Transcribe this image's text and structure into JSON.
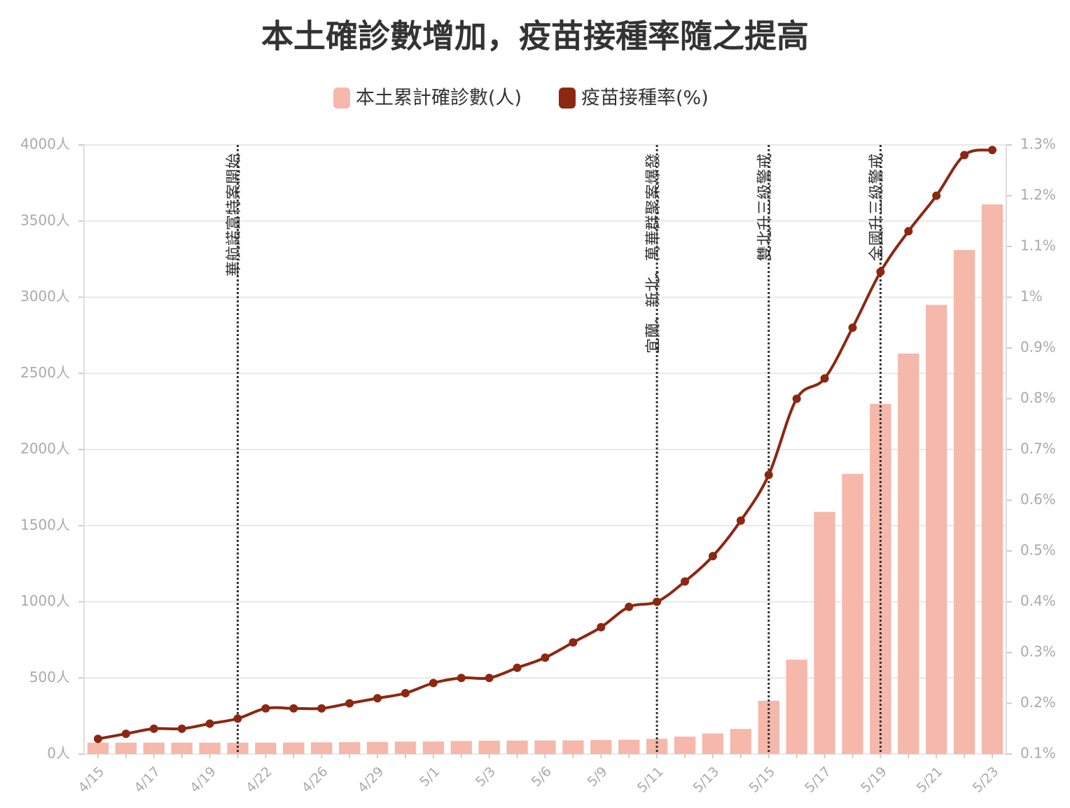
{
  "chart_data": {
    "type": "bar-line",
    "title": "本土確診數增加，疫苗接種率隨之提高",
    "categories": [
      "4/15",
      null,
      "4/17",
      null,
      "4/19",
      null,
      "4/22",
      null,
      "4/26",
      null,
      "4/29",
      null,
      "5/1",
      null,
      "5/3",
      null,
      "5/6",
      null,
      "5/9",
      null,
      "5/11",
      null,
      "5/13",
      null,
      "5/15",
      null,
      "5/17",
      null,
      "5/19",
      null,
      "5/21",
      null,
      "5/23"
    ],
    "series": [
      {
        "name": "本土累計確診數(人)",
        "type": "bar",
        "color": "#f5b8ab",
        "values": [
          75,
          75,
          75,
          75,
          75,
          75,
          75,
          76,
          77,
          78,
          80,
          82,
          83,
          86,
          88,
          89,
          90,
          90,
          92,
          94,
          100,
          115,
          135,
          165,
          350,
          620,
          1590,
          1840,
          2300,
          2630,
          2950,
          3310,
          3610
        ]
      },
      {
        "name": "疫苗接種率(%)",
        "type": "line",
        "axis": "y2",
        "color": "#8c2712",
        "values": [
          0.13,
          0.14,
          0.15,
          0.15,
          0.16,
          0.17,
          0.19,
          0.19,
          0.19,
          0.2,
          0.21,
          0.22,
          0.24,
          0.25,
          0.25,
          0.27,
          0.29,
          0.32,
          0.35,
          0.39,
          0.4,
          0.44,
          0.49,
          0.56,
          0.65,
          0.8,
          0.84,
          0.94,
          1.05,
          1.13,
          1.2,
          1.28,
          1.29
        ]
      }
    ],
    "ylim": [
      0,
      4000
    ],
    "yticks": [
      {
        "value": 0,
        "label": "0人"
      },
      {
        "value": 500,
        "label": "500人"
      },
      {
        "value": 1000,
        "label": "1000人"
      },
      {
        "value": 1500,
        "label": "1500人"
      },
      {
        "value": 2000,
        "label": "2000人"
      },
      {
        "value": 2500,
        "label": "2500人"
      },
      {
        "value": 3000,
        "label": "3000人"
      },
      {
        "value": 3500,
        "label": "3500人"
      },
      {
        "value": 4000,
        "label": "4000人"
      }
    ],
    "y2lim": [
      0.1,
      1.3
    ],
    "y2ticks": [
      {
        "value": 0.1,
        "label": "0.1%"
      },
      {
        "value": 0.2,
        "label": "0.2%"
      },
      {
        "value": 0.3,
        "label": "0.3%"
      },
      {
        "value": 0.4,
        "label": "0.4%"
      },
      {
        "value": 0.5,
        "label": "0.5%"
      },
      {
        "value": 0.6,
        "label": "0.6%"
      },
      {
        "value": 0.7,
        "label": "0.7%"
      },
      {
        "value": 0.8,
        "label": "0.8%"
      },
      {
        "value": 0.9,
        "label": "0.9%"
      },
      {
        "value": 1.0,
        "label": "1%"
      },
      {
        "value": 1.1,
        "label": "1.1%"
      },
      {
        "value": 1.2,
        "label": "1.2%"
      },
      {
        "value": 1.3,
        "label": "1.3%"
      }
    ],
    "grid": true,
    "legend": "top",
    "annotations": [
      {
        "index": 5,
        "text": "華航諾富特案開始"
      },
      {
        "index": 20,
        "text": "宜蘭、新北、萬華群聚案爆發"
      },
      {
        "index": 24,
        "text": "雙北升三級警戒"
      },
      {
        "index": 28,
        "text": "全國升三級警戒"
      }
    ]
  }
}
